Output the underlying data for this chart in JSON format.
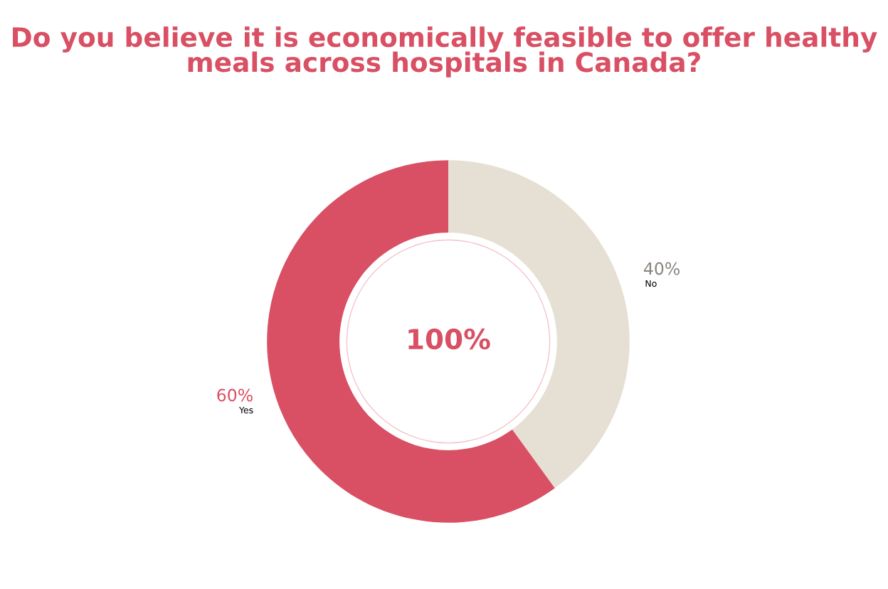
{
  "chart_data": {
    "type": "donut",
    "title": "Do you believe it is economically feasible to offer healthy meals across hospitals in Canada?",
    "categories": [
      "No",
      "Yes"
    ],
    "values": [
      40,
      60
    ],
    "value_labels": [
      "40%",
      "60%"
    ],
    "colors": [
      "#e6dfd3",
      "#d94f63"
    ],
    "annotations": [
      "100%"
    ],
    "legend": false
  }
}
